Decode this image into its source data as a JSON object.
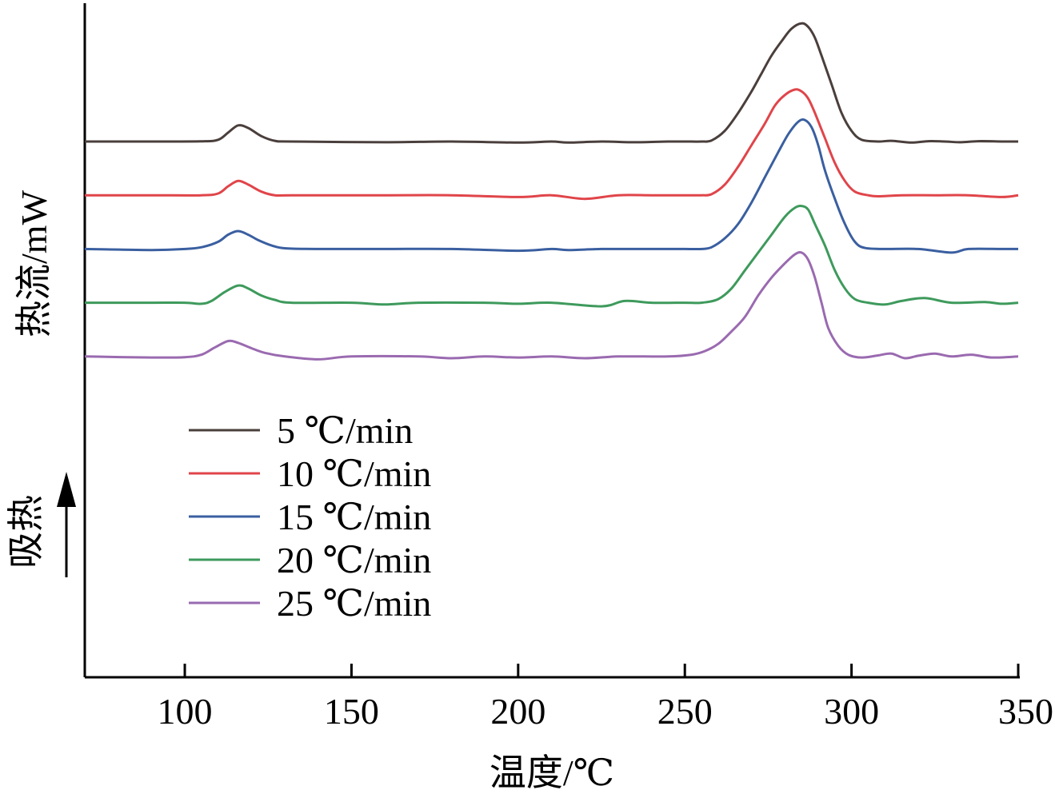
{
  "chart_data": {
    "type": "line",
    "xlabel": "温度/℃",
    "ylabel": "热流/mW",
    "endotherm_label": "吸热",
    "xlim": [
      70,
      350
    ],
    "xticks": [
      100,
      150,
      200,
      250,
      300,
      350
    ],
    "yticks_shown": false,
    "legend_position": "bottom-left",
    "series": [
      {
        "name": "5 ℃/min",
        "color": "#4a3f3c",
        "baseline": 0,
        "points": [
          [
            70,
            0
          ],
          [
            90,
            0
          ],
          [
            105,
            0.05
          ],
          [
            110,
            0.5
          ],
          [
            113,
            2.5
          ],
          [
            116,
            4.5
          ],
          [
            119,
            3.8
          ],
          [
            123,
            1.5
          ],
          [
            127,
            0.2
          ],
          [
            132,
            0
          ],
          [
            160,
            -0.2
          ],
          [
            180,
            0
          ],
          [
            200,
            -0.3
          ],
          [
            210,
            0
          ],
          [
            215,
            -0.3
          ],
          [
            225,
            0
          ],
          [
            235,
            -0.2
          ],
          [
            245,
            0
          ],
          [
            250,
            0
          ],
          [
            255,
            0
          ],
          [
            258,
            0.3
          ],
          [
            262,
            3
          ],
          [
            266,
            8
          ],
          [
            270,
            14
          ],
          [
            273,
            19
          ],
          [
            276,
            24
          ],
          [
            279,
            28
          ],
          [
            282,
            31.5
          ],
          [
            285,
            33
          ],
          [
            287,
            32
          ],
          [
            289,
            29
          ],
          [
            291,
            24
          ],
          [
            294,
            16
          ],
          [
            297,
            8
          ],
          [
            300,
            3
          ],
          [
            303,
            0.5
          ],
          [
            308,
            0
          ],
          [
            312,
            0.2
          ],
          [
            318,
            -0.3
          ],
          [
            323,
            0.1
          ],
          [
            328,
            0
          ],
          [
            333,
            -0.2
          ],
          [
            338,
            0.1
          ],
          [
            345,
            0
          ],
          [
            350,
            0
          ]
        ]
      },
      {
        "name": "10 ℃/min",
        "color": "#e0454a",
        "baseline": -15,
        "points": [
          [
            70,
            0
          ],
          [
            90,
            0
          ],
          [
            105,
            0
          ],
          [
            110,
            0.5
          ],
          [
            113,
            2.5
          ],
          [
            116,
            4
          ],
          [
            119,
            3
          ],
          [
            123,
            1
          ],
          [
            127,
            0
          ],
          [
            132,
            0
          ],
          [
            160,
            0
          ],
          [
            180,
            0
          ],
          [
            200,
            -0.5
          ],
          [
            210,
            0
          ],
          [
            220,
            -1
          ],
          [
            230,
            0
          ],
          [
            240,
            0
          ],
          [
            250,
            0
          ],
          [
            255,
            0
          ],
          [
            258,
            0.3
          ],
          [
            262,
            3
          ],
          [
            266,
            8
          ],
          [
            270,
            14
          ],
          [
            274,
            20
          ],
          [
            277,
            25
          ],
          [
            280,
            28
          ],
          [
            283,
            29.5
          ],
          [
            285,
            29
          ],
          [
            287,
            27
          ],
          [
            289,
            23
          ],
          [
            292,
            16
          ],
          [
            295,
            9
          ],
          [
            298,
            4
          ],
          [
            301,
            1
          ],
          [
            305,
            0
          ],
          [
            308,
            -0.3
          ],
          [
            315,
            0
          ],
          [
            325,
            0
          ],
          [
            335,
            0
          ],
          [
            345,
            -0.5
          ],
          [
            350,
            0
          ]
        ]
      },
      {
        "name": "15 ℃/min",
        "color": "#3a5fa0",
        "baseline": -30,
        "points": [
          [
            70,
            0
          ],
          [
            90,
            -0.3
          ],
          [
            100,
            0
          ],
          [
            105,
            0.5
          ],
          [
            110,
            2
          ],
          [
            113,
            4
          ],
          [
            116,
            5
          ],
          [
            119,
            4
          ],
          [
            122,
            2.5
          ],
          [
            126,
            1
          ],
          [
            130,
            0.2
          ],
          [
            140,
            0
          ],
          [
            160,
            0
          ],
          [
            180,
            0
          ],
          [
            200,
            -0.5
          ],
          [
            210,
            0
          ],
          [
            215,
            -0.3
          ],
          [
            225,
            0
          ],
          [
            235,
            0
          ],
          [
            245,
            0
          ],
          [
            250,
            0
          ],
          [
            255,
            0
          ],
          [
            258,
            0.5
          ],
          [
            262,
            3
          ],
          [
            266,
            7
          ],
          [
            270,
            13
          ],
          [
            274,
            20
          ],
          [
            278,
            27
          ],
          [
            281,
            32
          ],
          [
            284,
            35.5
          ],
          [
            286,
            36
          ],
          [
            288,
            34
          ],
          [
            290,
            29
          ],
          [
            292,
            22
          ],
          [
            295,
            14
          ],
          [
            298,
            7
          ],
          [
            301,
            2
          ],
          [
            304,
            0.3
          ],
          [
            310,
            0
          ],
          [
            320,
            0
          ],
          [
            330,
            -1
          ],
          [
            335,
            0
          ],
          [
            345,
            0
          ],
          [
            350,
            0
          ]
        ]
      },
      {
        "name": "20 ℃/min",
        "color": "#3e9a5c",
        "baseline": -45,
        "points": [
          [
            70,
            0
          ],
          [
            90,
            0
          ],
          [
            100,
            0
          ],
          [
            105,
            -0.3
          ],
          [
            108,
            0.5
          ],
          [
            112,
            3
          ],
          [
            116,
            4.8
          ],
          [
            119,
            4
          ],
          [
            123,
            2
          ],
          [
            127,
            0.8
          ],
          [
            132,
            0
          ],
          [
            150,
            0
          ],
          [
            160,
            -0.5
          ],
          [
            170,
            0
          ],
          [
            190,
            0
          ],
          [
            200,
            -0.3
          ],
          [
            210,
            0
          ],
          [
            225,
            -1
          ],
          [
            232,
            0.5
          ],
          [
            240,
            0
          ],
          [
            250,
            0
          ],
          [
            255,
            0
          ],
          [
            260,
            1
          ],
          [
            264,
            4
          ],
          [
            268,
            9
          ],
          [
            272,
            14
          ],
          [
            276,
            19
          ],
          [
            280,
            24
          ],
          [
            283,
            26.5
          ],
          [
            285,
            27
          ],
          [
            287,
            26
          ],
          [
            289,
            22
          ],
          [
            292,
            16
          ],
          [
            295,
            9
          ],
          [
            298,
            4
          ],
          [
            301,
            1
          ],
          [
            305,
            0
          ],
          [
            310,
            -0.5
          ],
          [
            315,
            0.5
          ],
          [
            322,
            1.3
          ],
          [
            330,
            0
          ],
          [
            340,
            0.2
          ],
          [
            345,
            -0.3
          ],
          [
            350,
            0
          ]
        ]
      },
      {
        "name": "25 ℃/min",
        "color": "#9a6ab0",
        "baseline": -60,
        "points": [
          [
            70,
            0
          ],
          [
            90,
            -0.3
          ],
          [
            100,
            -0.2
          ],
          [
            105,
            0.5
          ],
          [
            109,
            2.5
          ],
          [
            113,
            4.3
          ],
          [
            116,
            3.8
          ],
          [
            120,
            2.3
          ],
          [
            124,
            1
          ],
          [
            130,
            0
          ],
          [
            140,
            -0.8
          ],
          [
            150,
            0
          ],
          [
            170,
            0
          ],
          [
            180,
            -0.5
          ],
          [
            190,
            0
          ],
          [
            200,
            -0.3
          ],
          [
            210,
            0
          ],
          [
            220,
            -0.5
          ],
          [
            230,
            0
          ],
          [
            245,
            0
          ],
          [
            252,
            0.5
          ],
          [
            256,
            1.5
          ],
          [
            260,
            3.5
          ],
          [
            264,
            7
          ],
          [
            268,
            11
          ],
          [
            272,
            17
          ],
          [
            276,
            22
          ],
          [
            280,
            26
          ],
          [
            283,
            28.5
          ],
          [
            285,
            29
          ],
          [
            287,
            27
          ],
          [
            289,
            22
          ],
          [
            291,
            15
          ],
          [
            293,
            8
          ],
          [
            296,
            3
          ],
          [
            299,
            0.5
          ],
          [
            303,
            -0.3
          ],
          [
            308,
            0.3
          ],
          [
            312,
            0.8
          ],
          [
            316,
            -0.5
          ],
          [
            320,
            0.2
          ],
          [
            325,
            0.8
          ],
          [
            330,
            0
          ],
          [
            336,
            0.5
          ],
          [
            342,
            -0.3
          ],
          [
            350,
            0
          ]
        ]
      }
    ]
  }
}
